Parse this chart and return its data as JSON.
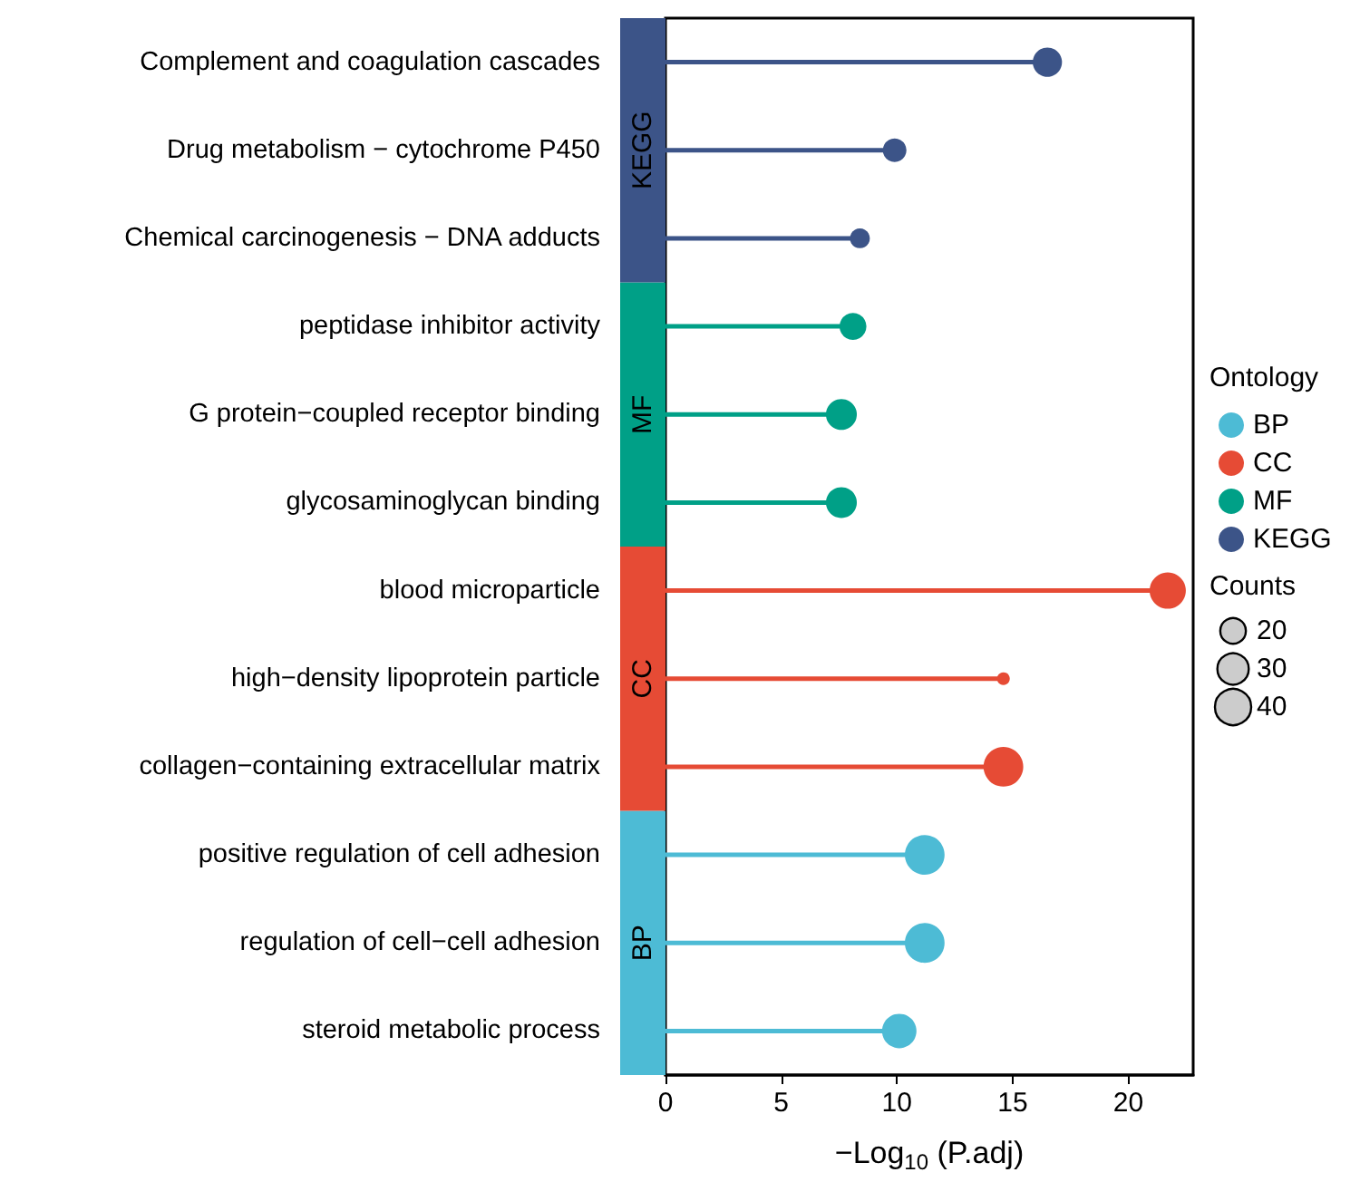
{
  "chart_data": {
    "type": "lollipop",
    "orientation": "horizontal",
    "categories": [
      "Complement and coagulation cascades",
      "Drug metabolism − cytochrome P450",
      "Chemical carcinogenesis − DNA adducts",
      "peptidase inhibitor activity",
      "G protein−coupled receptor binding",
      "glycosaminoglycan binding",
      "blood microparticle",
      "high−density lipoprotein particle",
      "collagen−containing extracellular matrix",
      "positive regulation of cell adhesion",
      "regulation of cell−cell adhesion",
      "steroid metabolic process"
    ],
    "series": [
      {
        "name": "BP",
        "color": "#4dbbd5",
        "values": [
          null,
          null,
          null,
          null,
          null,
          null,
          null,
          null,
          null,
          11.2,
          11.2,
          10.1
        ],
        "sizes": [
          null,
          null,
          null,
          null,
          null,
          null,
          null,
          null,
          null,
          48,
          48,
          36
        ]
      },
      {
        "name": "CC",
        "color": "#e64b35",
        "values": [
          null,
          null,
          null,
          null,
          null,
          null,
          21.7,
          14.6,
          14.6,
          null,
          null,
          null
        ],
        "sizes": [
          null,
          null,
          null,
          null,
          null,
          null,
          40,
          5,
          48,
          null,
          null,
          null
        ]
      },
      {
        "name": "MF",
        "color": "#00a087",
        "values": [
          null,
          null,
          null,
          8.1,
          7.6,
          7.6,
          null,
          null,
          null,
          null,
          null,
          null
        ],
        "sizes": [
          null,
          null,
          null,
          22,
          29,
          29,
          null,
          null,
          null,
          null,
          null,
          null
        ]
      },
      {
        "name": "KEGG",
        "color": "#3c5488",
        "values": [
          16.5,
          9.9,
          8.4,
          null,
          null,
          null,
          null,
          null,
          null,
          null,
          null,
          null
        ],
        "sizes": [
          26,
          17,
          12,
          null,
          null,
          null,
          null,
          null,
          null,
          null,
          null,
          null
        ]
      }
    ],
    "xlabel": "−Log$_{10}$ (P.adj)",
    "xlim": [
      0,
      22.8
    ],
    "xticks": [
      0,
      5,
      10,
      15,
      20
    ],
    "size_legend": [
      20,
      30,
      40
    ],
    "legend_title": "Ontology",
    "clabel": "Counts",
    "legend": "right",
    "grid": false,
    "marker": "circle"
  }
}
